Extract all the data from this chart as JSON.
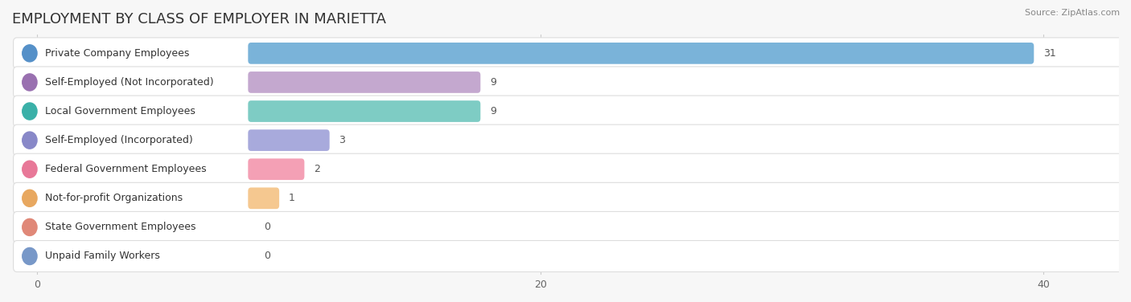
{
  "title": "EMPLOYMENT BY CLASS OF EMPLOYER IN MARIETTA",
  "source": "Source: ZipAtlas.com",
  "categories": [
    "Private Company Employees",
    "Self-Employed (Not Incorporated)",
    "Local Government Employees",
    "Self-Employed (Incorporated)",
    "Federal Government Employees",
    "Not-for-profit Organizations",
    "State Government Employees",
    "Unpaid Family Workers"
  ],
  "values": [
    31,
    9,
    9,
    3,
    2,
    1,
    0,
    0
  ],
  "bar_colors": [
    "#7ab3d9",
    "#c4a8cf",
    "#7eccc4",
    "#a8aadc",
    "#f4a0b5",
    "#f5c890",
    "#f0a898",
    "#a8c4e0"
  ],
  "circle_colors": [
    "#5590c8",
    "#9970b0",
    "#3ab0a8",
    "#8888c8",
    "#e87898",
    "#e8a860",
    "#e08878",
    "#7898c8"
  ],
  "xlim_max": 43,
  "xticks": [
    0,
    20,
    40
  ],
  "background_color": "#f7f7f7",
  "row_color": "#ffffff",
  "title_fontsize": 13,
  "label_fontsize": 9,
  "value_fontsize": 9,
  "figsize": [
    14.06,
    3.76
  ],
  "dpi": 100
}
